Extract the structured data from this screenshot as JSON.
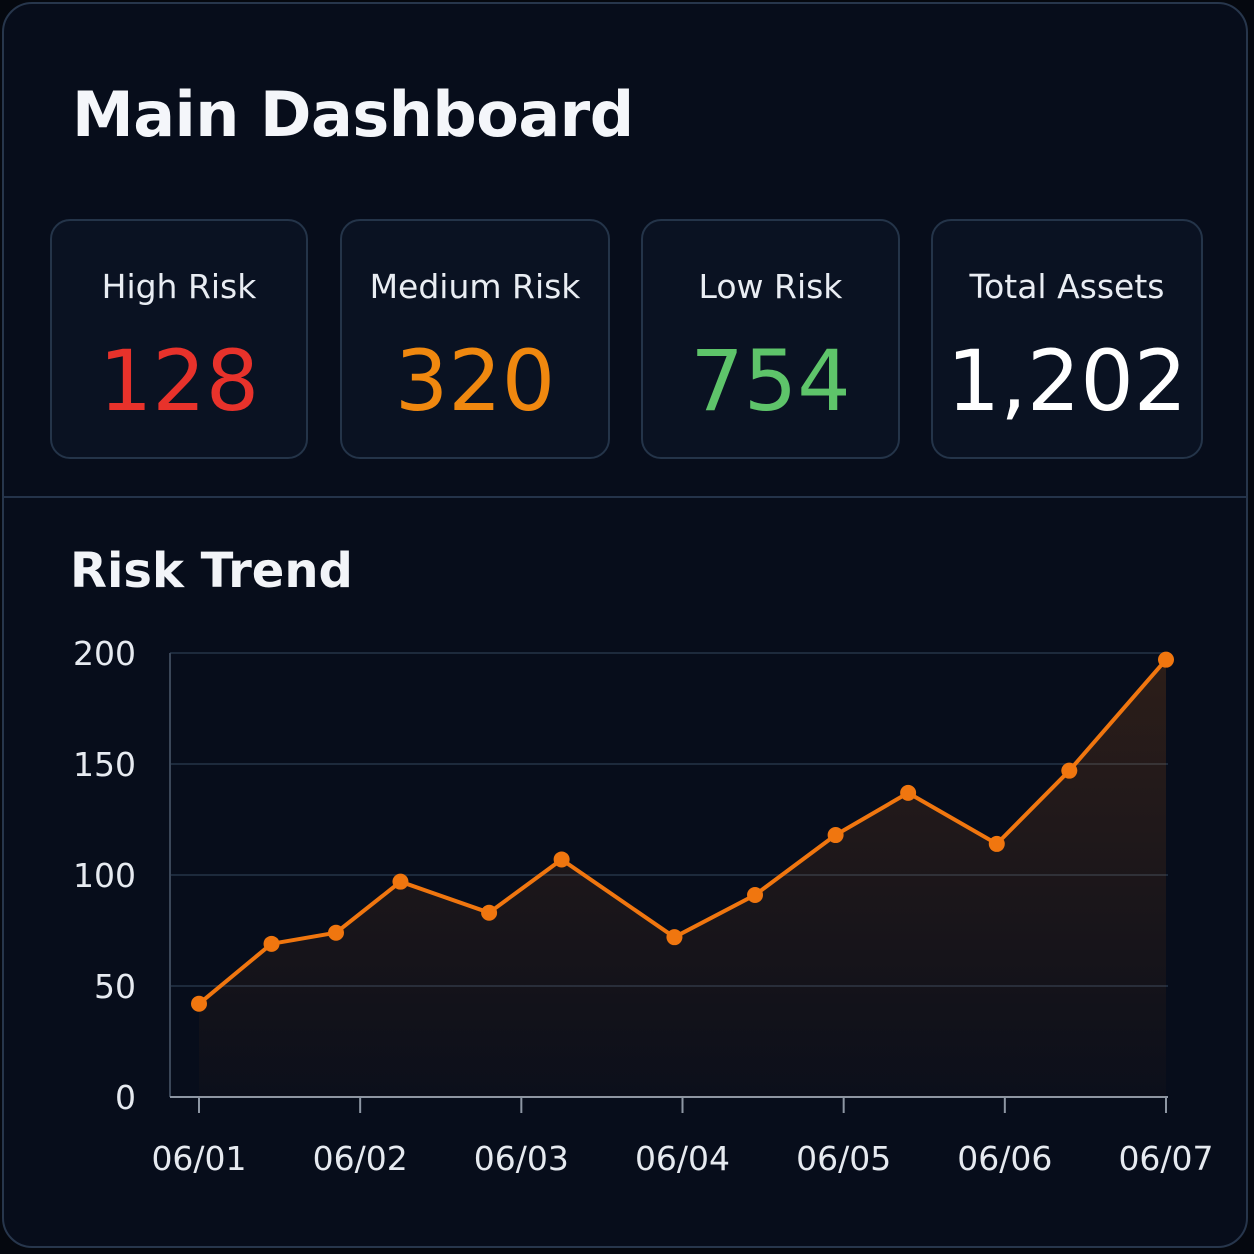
{
  "dashboard": {
    "title": "Main Dashboard"
  },
  "stats": [
    {
      "label": "High Risk",
      "value": "128",
      "color": "#e8322b"
    },
    {
      "label": "Medium Risk",
      "value": "320",
      "color": "#f0880f"
    },
    {
      "label": "Low Risk",
      "value": "754",
      "color": "#5ec46a"
    },
    {
      "label": "Total Assets",
      "value": "1,202",
      "color": "#ffffff"
    }
  ],
  "trend": {
    "title": "Risk Trend"
  },
  "colors": {
    "background": "#070d1b",
    "card_border": "#243449",
    "line": "#f0760f",
    "grid": "#1d2a3c"
  },
  "chart_data": {
    "type": "line",
    "title": "Risk Trend",
    "xlabel": "",
    "ylabel": "",
    "ylim": [
      0,
      200
    ],
    "yticks": [
      0,
      50,
      100,
      150,
      200
    ],
    "xticks": [
      "06/01",
      "06/02",
      "06/03",
      "06/04",
      "06/05",
      "06/06",
      "06/07"
    ],
    "grid": true,
    "series": [
      {
        "values": [
          {
            "x": 0.0,
            "y": 42
          },
          {
            "x": 0.45,
            "y": 69
          },
          {
            "x": 0.85,
            "y": 74
          },
          {
            "x": 1.25,
            "y": 97
          },
          {
            "x": 1.8,
            "y": 83
          },
          {
            "x": 2.25,
            "y": 107
          },
          {
            "x": 2.95,
            "y": 72
          },
          {
            "x": 3.45,
            "y": 91
          },
          {
            "x": 3.95,
            "y": 118
          },
          {
            "x": 4.4,
            "y": 137
          },
          {
            "x": 4.95,
            "y": 114
          },
          {
            "x": 5.4,
            "y": 147
          },
          {
            "x": 6.0,
            "y": 197
          }
        ]
      }
    ]
  }
}
